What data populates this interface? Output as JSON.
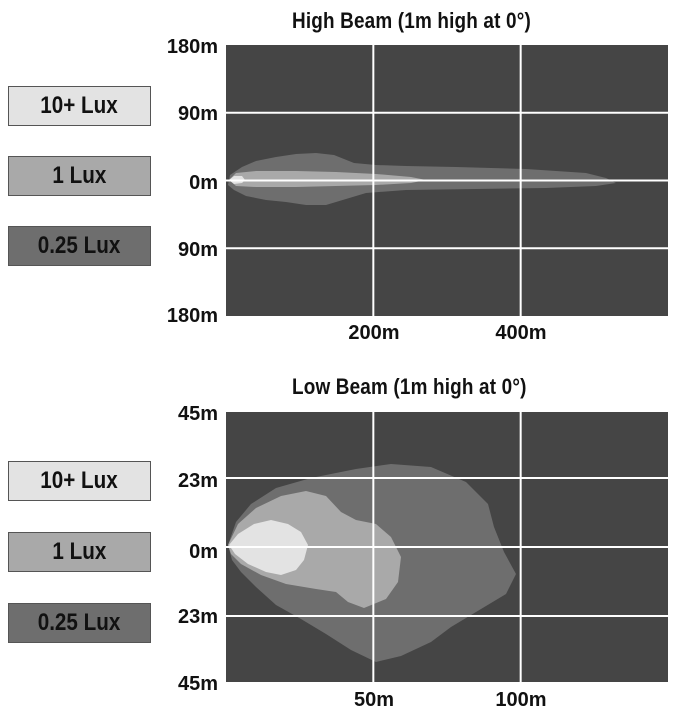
{
  "chart_data": [
    {
      "type": "heatmap",
      "title": "High Beam (1m high at 0°)",
      "legend": [
        {
          "label": "10+ Lux",
          "color": "#e3e3e3"
        },
        {
          "label": "1 Lux",
          "color": "#a9a9a9"
        },
        {
          "label": "0.25 Lux",
          "color": "#6e6e6e"
        }
      ],
      "background_color": "#454545",
      "grid": true,
      "xlim": [
        0,
        600
      ],
      "ylim": [
        -180,
        180
      ],
      "x_tick_labels": [
        "200m",
        "400m"
      ],
      "x_ticks": [
        200,
        400
      ],
      "y_tick_labels": [
        "180m",
        "90m",
        "0m",
        "90m",
        "180m"
      ],
      "y_ticks": [
        180,
        90,
        0,
        -90,
        -180
      ],
      "zones": [
        {
          "label": "0.25 Lux",
          "max_distance_m": 530,
          "max_half_width_m": 32
        },
        {
          "label": "1 Lux",
          "max_distance_m": 270,
          "max_half_width_m": 9
        },
        {
          "label": "10+ Lux",
          "max_distance_m": 22,
          "max_half_width_m": 4
        }
      ]
    },
    {
      "type": "heatmap",
      "title": "Low Beam (1m high at 0°)",
      "legend": [
        {
          "label": "10+ Lux",
          "color": "#e3e3e3"
        },
        {
          "label": "1 Lux",
          "color": "#a9a9a9"
        },
        {
          "label": "0.25 Lux",
          "color": "#6e6e6e"
        }
      ],
      "background_color": "#454545",
      "grid": true,
      "xlim": [
        0,
        150
      ],
      "ylim": [
        -45,
        45
      ],
      "x_tick_labels": [
        "50m",
        "100m"
      ],
      "x_ticks": [
        50,
        100
      ],
      "y_tick_labels": [
        "45m",
        "23m",
        "0m",
        "23m",
        "45m"
      ],
      "y_ticks": [
        45,
        23,
        0,
        -23,
        -45
      ],
      "zones": [
        {
          "label": "0.25 Lux",
          "max_distance_m": 99,
          "max_half_width_m": 36
        },
        {
          "label": "1 Lux",
          "max_distance_m": 60,
          "max_half_width_m": 20
        },
        {
          "label": "10+ Lux",
          "max_distance_m": 27,
          "max_half_width_m": 11
        }
      ]
    }
  ]
}
